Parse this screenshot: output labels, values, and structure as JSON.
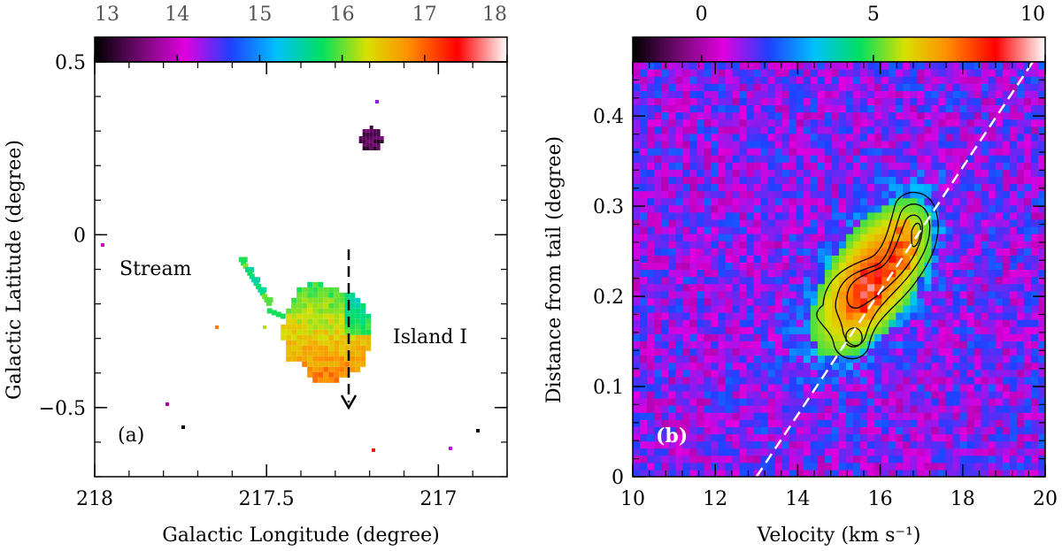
{
  "chart_data": [
    {
      "panel_label": "(a)",
      "type": "heatmap",
      "xlabel": "Galactic Longitude (degree)",
      "ylabel": "Galactic Latitude (degree)",
      "xlim": [
        218,
        216.8
      ],
      "ylim": [
        -0.7,
        0.5
      ],
      "x_ticks": [
        218,
        217.5,
        217
      ],
      "x_tick_labels": [
        "218",
        "217.5",
        "217"
      ],
      "y_ticks": [
        -0.5,
        0,
        0.5
      ],
      "y_tick_labels": [
        "−0.5",
        "0",
        "0.5"
      ],
      "colorbar": {
        "ticks": [
          13,
          14,
          15,
          16,
          17,
          18
        ],
        "tick_labels": [
          "13",
          "14",
          "15",
          "16",
          "17",
          "18"
        ],
        "range": [
          13,
          18
        ]
      },
      "annotations": [
        {
          "text": "Stream",
          "x": 217.83,
          "y": -0.1
        },
        {
          "text": "Island I",
          "x": 217.05,
          "y": -0.3
        }
      ],
      "arrow": {
        "x": 217.26,
        "y_start": -0.04,
        "y_end": -0.5
      },
      "features": [
        {
          "label": "Stream",
          "l": 217.55,
          "b": -0.1,
          "mean_velocity": 15.8
        },
        {
          "label": "Island I",
          "l": 217.33,
          "b": -0.28,
          "mean_velocity": 16.6
        },
        {
          "label": "clump",
          "l": 217.2,
          "b": 0.28,
          "mean_velocity": 13.4
        }
      ]
    },
    {
      "panel_label": "(b)",
      "type": "heatmap",
      "xlabel": "Velocity (km s⁻¹)",
      "ylabel": "Distance from tail (degree)",
      "xlim": [
        10,
        20
      ],
      "ylim": [
        0,
        0.46
      ],
      "x_ticks": [
        10,
        12,
        14,
        16,
        18,
        20
      ],
      "x_tick_labels": [
        "10",
        "12",
        "14",
        "16",
        "18",
        "20"
      ],
      "y_ticks": [
        0,
        0.1,
        0.2,
        0.3,
        0.4
      ],
      "y_tick_labels": [
        "0",
        "0.1",
        "0.2",
        "0.3",
        "0.4"
      ],
      "colorbar": {
        "ticks": [
          0,
          5,
          10
        ],
        "tick_labels": [
          "0",
          "5",
          "10"
        ],
        "range": [
          -2,
          10
        ]
      },
      "emission_peak": {
        "velocity": 16.6,
        "distance": 0.26,
        "value": 9.5
      },
      "dashed_fit_line": {
        "x": [
          13.0,
          19.7
        ],
        "y": [
          0,
          0.46
        ]
      }
    }
  ]
}
